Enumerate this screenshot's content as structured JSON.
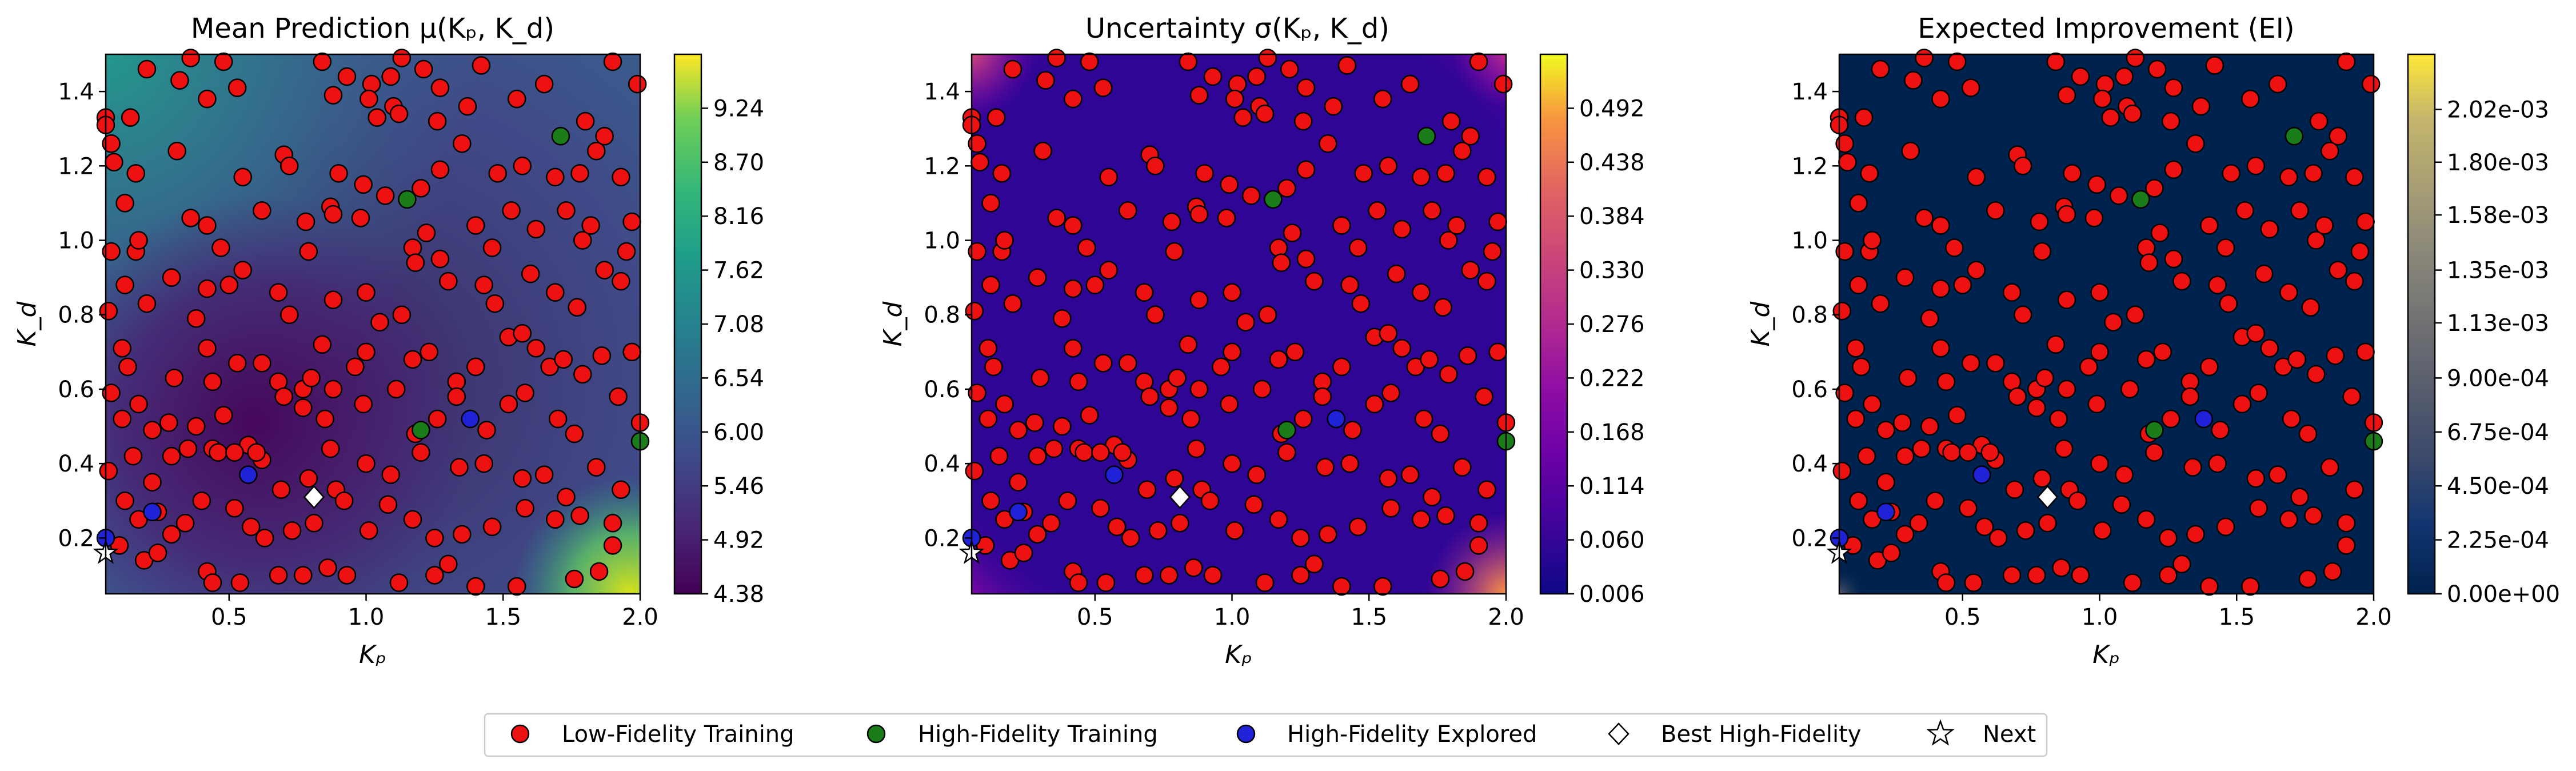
{
  "chart_data": [
    {
      "type": "heatmap",
      "title": "Mean Prediction μ(Kₚ, K_d)",
      "xlabel": "Kₚ",
      "ylabel": "K_d",
      "xlim": [
        0.05,
        2.0
      ],
      "ylim": [
        0.05,
        1.5
      ],
      "xticks": [
        "0.5",
        "1.0",
        "1.5",
        "2.0"
      ],
      "yticks": [
        "0.2",
        "0.4",
        "0.6",
        "0.8",
        "1.0",
        "1.2",
        "1.4"
      ],
      "colormap": "viridis",
      "colorbar_range": [
        4.38,
        9.78
      ],
      "colorbar_ticks": [
        "4.38",
        "4.92",
        "5.46",
        "6.00",
        "6.54",
        "7.08",
        "7.62",
        "8.16",
        "8.70",
        "9.24"
      ]
    },
    {
      "type": "heatmap",
      "title": "Uncertainty σ(Kₚ, K_d)",
      "xlabel": "Kₚ",
      "ylabel": "K_d",
      "xlim": [
        0.05,
        2.0
      ],
      "ylim": [
        0.05,
        1.5
      ],
      "xticks": [
        "0.5",
        "1.0",
        "1.5",
        "2.0"
      ],
      "yticks": [
        "0.2",
        "0.4",
        "0.6",
        "0.8",
        "1.0",
        "1.2",
        "1.4"
      ],
      "colormap": "plasma",
      "colorbar_range": [
        0.006,
        0.546
      ],
      "colorbar_ticks": [
        "0.006",
        "0.060",
        "0.114",
        "0.168",
        "0.222",
        "0.276",
        "0.330",
        "0.384",
        "0.438",
        "0.492"
      ]
    },
    {
      "type": "heatmap",
      "title": "Expected Improvement (EI)",
      "xlabel": "Kₚ",
      "ylabel": "K_d",
      "xlim": [
        0.05,
        2.0
      ],
      "ylim": [
        0.05,
        1.5
      ],
      "xticks": [
        "0.5",
        "1.0",
        "1.5",
        "2.0"
      ],
      "yticks": [
        "0.2",
        "0.4",
        "0.6",
        "0.8",
        "1.0",
        "1.2",
        "1.4"
      ],
      "colormap": "cividis",
      "colorbar_range": [
        0.0,
        0.00225
      ],
      "colorbar_ticks": [
        "0.00e+00",
        "2.25e-04",
        "4.50e-04",
        "6.75e-04",
        "9.00e-04",
        "1.13e-03",
        "1.35e-03",
        "1.58e-03",
        "1.80e-03",
        "2.02e-03"
      ]
    }
  ],
  "points": {
    "low_fidelity": [
      [
        0.2,
        1.46
      ],
      [
        0.36,
        1.49
      ],
      [
        0.48,
        1.48
      ],
      [
        0.84,
        1.48
      ],
      [
        0.93,
        1.44
      ],
      [
        1.02,
        1.42
      ],
      [
        1.09,
        1.44
      ],
      [
        1.13,
        1.49
      ],
      [
        1.21,
        1.46
      ],
      [
        1.42,
        1.47
      ],
      [
        1.9,
        1.48
      ],
      [
        1.99,
        1.42
      ],
      [
        0.05,
        1.33
      ],
      [
        0.05,
        1.31
      ],
      [
        0.07,
        1.26
      ],
      [
        0.14,
        1.33
      ],
      [
        0.32,
        1.43
      ],
      [
        0.42,
        1.38
      ],
      [
        0.53,
        1.41
      ],
      [
        0.88,
        1.39
      ],
      [
        1.01,
        1.38
      ],
      [
        1.04,
        1.33
      ],
      [
        1.1,
        1.36
      ],
      [
        1.12,
        1.34
      ],
      [
        1.27,
        1.41
      ],
      [
        1.37,
        1.36
      ],
      [
        1.55,
        1.38
      ],
      [
        1.65,
        1.42
      ],
      [
        1.8,
        1.32
      ],
      [
        1.87,
        1.28
      ],
      [
        0.08,
        1.21
      ],
      [
        0.16,
        1.18
      ],
      [
        0.31,
        1.24
      ],
      [
        0.55,
        1.17
      ],
      [
        0.7,
        1.23
      ],
      [
        0.72,
        1.2
      ],
      [
        0.9,
        1.18
      ],
      [
        0.99,
        1.15
      ],
      [
        1.07,
        1.12
      ],
      [
        1.2,
        1.14
      ],
      [
        1.26,
        1.32
      ],
      [
        1.27,
        1.19
      ],
      [
        1.35,
        1.26
      ],
      [
        1.48,
        1.18
      ],
      [
        1.57,
        1.2
      ],
      [
        1.69,
        1.17
      ],
      [
        1.78,
        1.18
      ],
      [
        1.84,
        1.24
      ],
      [
        1.93,
        1.17
      ],
      [
        0.07,
        0.97
      ],
      [
        0.12,
        1.1
      ],
      [
        0.16,
        0.97
      ],
      [
        0.17,
        1.0
      ],
      [
        0.36,
        1.06
      ],
      [
        0.42,
        1.04
      ],
      [
        0.47,
        0.98
      ],
      [
        0.62,
        1.08
      ],
      [
        0.78,
        1.05
      ],
      [
        0.79,
        0.97
      ],
      [
        0.87,
        1.09
      ],
      [
        0.88,
        1.07
      ],
      [
        0.98,
        1.06
      ],
      [
        1.17,
        0.98
      ],
      [
        1.22,
        1.02
      ],
      [
        1.4,
        1.04
      ],
      [
        1.46,
        0.98
      ],
      [
        1.53,
        1.08
      ],
      [
        1.62,
        1.03
      ],
      [
        1.73,
        1.08
      ],
      [
        1.79,
        1.0
      ],
      [
        1.82,
        1.04
      ],
      [
        1.95,
        0.97
      ],
      [
        1.97,
        1.05
      ],
      [
        0.06,
        0.81
      ],
      [
        0.12,
        0.88
      ],
      [
        0.2,
        0.83
      ],
      [
        0.29,
        0.9
      ],
      [
        0.38,
        0.79
      ],
      [
        0.42,
        0.87
      ],
      [
        0.5,
        0.88
      ],
      [
        0.55,
        0.92
      ],
      [
        0.68,
        0.86
      ],
      [
        0.72,
        0.8
      ],
      [
        0.88,
        0.84
      ],
      [
        1.0,
        0.86
      ],
      [
        1.05,
        0.78
      ],
      [
        1.13,
        0.8
      ],
      [
        1.18,
        0.94
      ],
      [
        1.27,
        0.95
      ],
      [
        1.3,
        0.89
      ],
      [
        1.43,
        0.88
      ],
      [
        1.47,
        0.83
      ],
      [
        1.6,
        0.91
      ],
      [
        1.69,
        0.86
      ],
      [
        1.77,
        0.82
      ],
      [
        1.87,
        0.92
      ],
      [
        1.93,
        0.89
      ],
      [
        0.11,
        0.71
      ],
      [
        0.13,
        0.66
      ],
      [
        0.3,
        0.63
      ],
      [
        0.42,
        0.71
      ],
      [
        0.44,
        0.62
      ],
      [
        0.53,
        0.67
      ],
      [
        0.62,
        0.67
      ],
      [
        0.68,
        0.62
      ],
      [
        0.77,
        0.6
      ],
      [
        0.8,
        0.63
      ],
      [
        0.84,
        0.72
      ],
      [
        0.96,
        0.66
      ],
      [
        1.0,
        0.7
      ],
      [
        1.17,
        0.68
      ],
      [
        1.23,
        0.7
      ],
      [
        1.33,
        0.62
      ],
      [
        1.4,
        0.66
      ],
      [
        1.52,
        0.74
      ],
      [
        1.57,
        0.75
      ],
      [
        1.62,
        0.71
      ],
      [
        1.67,
        0.66
      ],
      [
        1.72,
        0.68
      ],
      [
        1.79,
        0.64
      ],
      [
        1.86,
        0.69
      ],
      [
        1.97,
        0.7
      ],
      [
        0.07,
        0.59
      ],
      [
        0.11,
        0.52
      ],
      [
        0.17,
        0.56
      ],
      [
        0.22,
        0.49
      ],
      [
        0.28,
        0.51
      ],
      [
        0.38,
        0.5
      ],
      [
        0.44,
        0.44
      ],
      [
        0.48,
        0.53
      ],
      [
        0.57,
        0.45
      ],
      [
        0.62,
        0.41
      ],
      [
        0.7,
        0.58
      ],
      [
        0.77,
        0.55
      ],
      [
        0.85,
        0.52
      ],
      [
        0.88,
        0.6
      ],
      [
        0.99,
        0.56
      ],
      [
        1.11,
        0.6
      ],
      [
        1.18,
        0.48
      ],
      [
        1.26,
        0.52
      ],
      [
        1.33,
        0.58
      ],
      [
        1.44,
        0.49
      ],
      [
        1.52,
        0.56
      ],
      [
        1.58,
        0.59
      ],
      [
        1.7,
        0.52
      ],
      [
        1.76,
        0.48
      ],
      [
        1.92,
        0.58
      ],
      [
        2.0,
        0.51
      ],
      [
        0.06,
        0.38
      ],
      [
        0.15,
        0.42
      ],
      [
        0.22,
        0.35
      ],
      [
        0.29,
        0.42
      ],
      [
        0.35,
        0.44
      ],
      [
        0.46,
        0.43
      ],
      [
        0.52,
        0.43
      ],
      [
        0.6,
        0.43
      ],
      [
        0.69,
        0.33
      ],
      [
        0.79,
        0.36
      ],
      [
        0.87,
        0.44
      ],
      [
        0.89,
        0.33
      ],
      [
        1.0,
        0.4
      ],
      [
        1.09,
        0.37
      ],
      [
        1.2,
        0.43
      ],
      [
        1.34,
        0.39
      ],
      [
        1.43,
        0.4
      ],
      [
        1.57,
        0.36
      ],
      [
        1.65,
        0.37
      ],
      [
        1.73,
        0.31
      ],
      [
        1.84,
        0.39
      ],
      [
        1.93,
        0.33
      ],
      [
        0.12,
        0.3
      ],
      [
        0.17,
        0.25
      ],
      [
        0.24,
        0.27
      ],
      [
        0.29,
        0.21
      ],
      [
        0.34,
        0.24
      ],
      [
        0.4,
        0.3
      ],
      [
        0.52,
        0.28
      ],
      [
        0.58,
        0.23
      ],
      [
        0.63,
        0.2
      ],
      [
        0.73,
        0.22
      ],
      [
        0.81,
        0.24
      ],
      [
        0.92,
        0.3
      ],
      [
        1.01,
        0.22
      ],
      [
        1.08,
        0.29
      ],
      [
        1.17,
        0.25
      ],
      [
        1.25,
        0.2
      ],
      [
        1.35,
        0.21
      ],
      [
        1.46,
        0.23
      ],
      [
        1.58,
        0.28
      ],
      [
        1.69,
        0.25
      ],
      [
        1.78,
        0.26
      ],
      [
        1.9,
        0.24
      ],
      [
        0.1,
        0.18
      ],
      [
        0.19,
        0.14
      ],
      [
        0.24,
        0.16
      ],
      [
        0.42,
        0.11
      ],
      [
        0.44,
        0.08
      ],
      [
        0.54,
        0.08
      ],
      [
        0.68,
        0.1
      ],
      [
        0.77,
        0.1
      ],
      [
        0.86,
        0.12
      ],
      [
        0.93,
        0.1
      ],
      [
        1.12,
        0.08
      ],
      [
        1.25,
        0.1
      ],
      [
        1.3,
        0.13
      ],
      [
        1.4,
        0.07
      ],
      [
        1.55,
        0.07
      ],
      [
        1.76,
        0.09
      ],
      [
        1.85,
        0.11
      ],
      [
        1.9,
        0.18
      ]
    ],
    "high_fidelity_training": [
      [
        1.15,
        1.11
      ],
      [
        1.71,
        1.28
      ],
      [
        1.2,
        0.49
      ],
      [
        2.0,
        0.46
      ]
    ],
    "high_fidelity_explored": [
      [
        0.57,
        0.37
      ],
      [
        1.38,
        0.52
      ],
      [
        0.22,
        0.27
      ],
      [
        0.05,
        0.2
      ]
    ],
    "best_high_fidelity": [
      [
        0.81,
        0.31
      ]
    ],
    "next": [
      [
        0.05,
        0.16
      ]
    ]
  },
  "legend": {
    "low": "Low-Fidelity Training",
    "high_train": "High-Fidelity Training",
    "high_explored": "High-Fidelity Explored",
    "best": "Best High-Fidelity",
    "next": "Next"
  },
  "colors": {
    "low": "#ee1111",
    "high_train": "#1a7d1a",
    "high_explored": "#1f22d6",
    "best": "#ffffff",
    "next": "#ffffff"
  }
}
